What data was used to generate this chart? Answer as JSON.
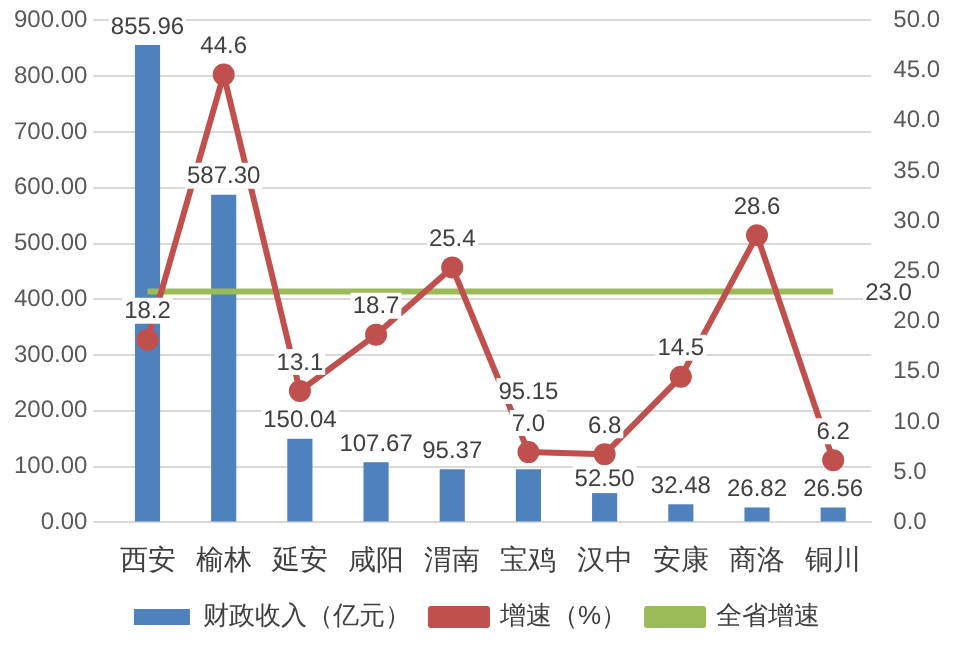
{
  "chart_data": {
    "type": "bar",
    "categories": [
      "西安",
      "榆林",
      "延安",
      "咸阳",
      "渭南",
      "宝鸡",
      "汉中",
      "安康",
      "商洛",
      "铜川"
    ],
    "series": [
      {
        "name": "财政收入（亿元）",
        "type": "bar",
        "color": "#4f81bd",
        "values": [
          855.96,
          587.3,
          150.04,
          107.67,
          95.37,
          95.15,
          52.5,
          32.48,
          26.82,
          26.56
        ],
        "value_labels": [
          "855.96",
          "587.30",
          "150.04",
          "107.67",
          "95.37",
          "95.15",
          "52.50",
          "32.48",
          "26.82",
          "26.56"
        ]
      },
      {
        "name": "增速（%）",
        "type": "line",
        "axis": "y2",
        "color": "#c0504d",
        "values": [
          18.2,
          44.6,
          13.1,
          18.7,
          25.4,
          7.0,
          6.8,
          14.5,
          28.6,
          6.2
        ],
        "value_labels": [
          "18.2",
          "44.6",
          "13.1",
          "18.7",
          "25.4",
          "7.0",
          "6.8",
          "14.5",
          "28.6",
          "6.2"
        ]
      },
      {
        "name": "全省增速",
        "type": "line",
        "axis": "y2",
        "marker": "none",
        "color": "#9bbb59",
        "values": [
          23.0,
          23.0,
          23.0,
          23.0,
          23.0,
          23.0,
          23.0,
          23.0,
          23.0,
          23.0
        ],
        "value_labels": [
          null,
          null,
          null,
          null,
          null,
          null,
          null,
          null,
          null,
          "23.0"
        ]
      }
    ],
    "ylim": [
      0,
      900
    ],
    "yticks": [
      {
        "value": 0,
        "label": "0.00"
      },
      {
        "value": 100,
        "label": "100.00"
      },
      {
        "value": 200,
        "label": "200.00"
      },
      {
        "value": 300,
        "label": "300.00"
      },
      {
        "value": 400,
        "label": "400.00"
      },
      {
        "value": 500,
        "label": "500.00"
      },
      {
        "value": 600,
        "label": "600.00"
      },
      {
        "value": 700,
        "label": "700.00"
      },
      {
        "value": 800,
        "label": "800.00"
      },
      {
        "value": 900,
        "label": "900.00"
      }
    ],
    "y2lim": [
      0,
      50
    ],
    "y2ticks": [
      {
        "value": 0,
        "label": "0.0"
      },
      {
        "value": 5,
        "label": "5.0"
      },
      {
        "value": 10,
        "label": "10.0"
      },
      {
        "value": 15,
        "label": "15.0"
      },
      {
        "value": 20,
        "label": "20.0"
      },
      {
        "value": 25,
        "label": "25.0"
      },
      {
        "value": 30,
        "label": "30.0"
      },
      {
        "value": 35,
        "label": "35.0"
      },
      {
        "value": 40,
        "label": "40.0"
      },
      {
        "value": 45,
        "label": "45.0"
      },
      {
        "value": 50,
        "label": "50.0"
      }
    ],
    "grid": "y",
    "legend": "bottom",
    "marker": "circle"
  }
}
